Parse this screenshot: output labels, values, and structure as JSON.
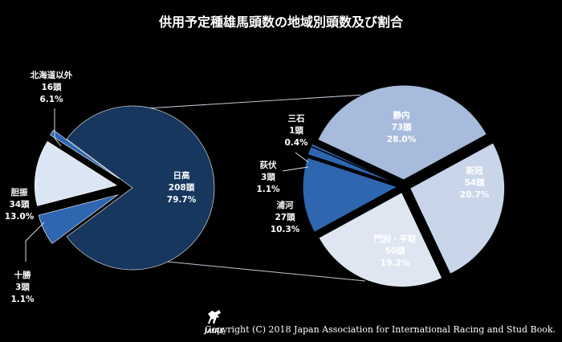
{
  "title": "供用予定種雄馬頭数の地域別頭数及び割合",
  "copyright": "Copyright (C) 2018 Japan Association for International Racing and Stud Book.",
  "logo": {
    "text": "JAIRS"
  },
  "colors": {
    "background": "#000000",
    "hidaka": "#17375e",
    "dark_blue": "#2e66b0",
    "light_blue": "#dbe6f4",
    "sub_mid": "#a7bcdc",
    "sub_light": "#c9d6ea",
    "sub_pale": "#dfe6f1"
  },
  "chart_data": [
    {
      "type": "pie",
      "title": "",
      "slices": [
        {
          "label": "日高",
          "count": "208頭",
          "percent": "79.7%",
          "value": 208
        },
        {
          "label": "北海道以外",
          "count": "16頭",
          "percent": "6.1%",
          "value": 16
        },
        {
          "label": "胆振",
          "count": "34頭",
          "percent": "13.0%",
          "value": 34
        },
        {
          "label": "十勝",
          "count": "3頭",
          "percent": "1.1%",
          "value": 3
        }
      ]
    },
    {
      "type": "pie",
      "title": "",
      "slices": [
        {
          "label": "静内",
          "count": "73頭",
          "percent": "28.0%",
          "value": 73
        },
        {
          "label": "新冠",
          "count": "54頭",
          "percent": "20.7%",
          "value": 54
        },
        {
          "label": "門別・平取",
          "count": "50頭",
          "percent": "19.2%",
          "value": 50
        },
        {
          "label": "浦河",
          "count": "27頭",
          "percent": "10.3%",
          "value": 27
        },
        {
          "label": "荻伏",
          "count": "3頭",
          "percent": "1.1%",
          "value": 3
        },
        {
          "label": "三石",
          "count": "1頭",
          "percent": "0.4%",
          "value": 1
        }
      ]
    }
  ]
}
